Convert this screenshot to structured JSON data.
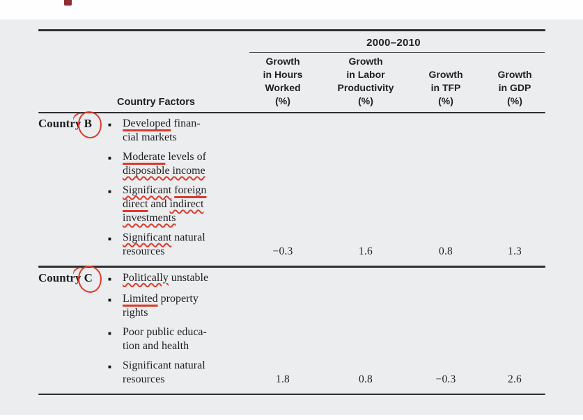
{
  "page": {
    "background": "#ffffff",
    "panel_background": "#ecedef",
    "accent_maroon": "#8e2f36",
    "pen_red": "#dc3a2b",
    "title_fragment": "cropped-title-letter"
  },
  "table": {
    "period_header": "2000–2010",
    "factors_header": "Country Factors",
    "columns": [
      {
        "lines": [
          "Growth",
          "in Hours",
          "Worked",
          "(%)"
        ]
      },
      {
        "lines": [
          "Growth",
          "in Labor",
          "Productivity",
          "(%)"
        ]
      },
      {
        "lines": [
          "Growth",
          "in TFP",
          "(%)"
        ]
      },
      {
        "lines": [
          "Growth",
          "in GDP",
          "(%)"
        ]
      }
    ],
    "sections": [
      {
        "country_prefix": "Country",
        "country_letter": "B",
        "factors": [
          {
            "lines": [
              [
                {
                  "t": "Developed",
                  "u": "line"
                },
                {
                  "t": " finan-"
                }
              ],
              [
                {
                  "t": "cial markets"
                }
              ]
            ]
          },
          {
            "lines": [
              [
                {
                  "t": "Moderate",
                  "u": "line"
                },
                {
                  "t": " levels of"
                }
              ],
              [
                {
                  "t": "disposable income",
                  "u": "wavy"
                }
              ]
            ]
          },
          {
            "lines": [
              [
                {
                  "t": "Significant",
                  "u": "wavy"
                },
                {
                  "t": " "
                },
                {
                  "t": "foreign",
                  "u": "line"
                }
              ],
              [
                {
                  "t": "direct",
                  "u": "line"
                },
                {
                  "t": " and "
                },
                {
                  "t": "indirect",
                  "u": "wavy"
                }
              ],
              [
                {
                  "t": "investments",
                  "u": "wavy"
                }
              ]
            ]
          },
          {
            "lines": [
              [
                {
                  "t": "Significant",
                  "u": "wavy"
                },
                {
                  "t": " natural"
                }
              ],
              [
                {
                  "t": "resources"
                }
              ]
            ]
          }
        ],
        "values": [
          "−0.3",
          "1.6",
          "0.8",
          "1.3"
        ]
      },
      {
        "country_prefix": "Country",
        "country_letter": "C",
        "factors": [
          {
            "lines": [
              [
                {
                  "t": "Politically",
                  "u": "wavy"
                },
                {
                  "t": " unstable"
                }
              ]
            ]
          },
          {
            "lines": [
              [
                {
                  "t": "Limited",
                  "u": "line"
                },
                {
                  "t": " property"
                }
              ],
              [
                {
                  "t": "rights"
                }
              ]
            ]
          },
          {
            "lines": [
              [
                {
                  "t": "Poor public educa-"
                }
              ],
              [
                {
                  "t": "tion and health"
                }
              ]
            ]
          },
          {
            "lines": [
              [
                {
                  "t": "Significant natural"
                }
              ],
              [
                {
                  "t": "resources"
                }
              ]
            ]
          }
        ],
        "values": [
          "1.8",
          "0.8",
          "−0.3",
          "2.6"
        ]
      }
    ]
  }
}
